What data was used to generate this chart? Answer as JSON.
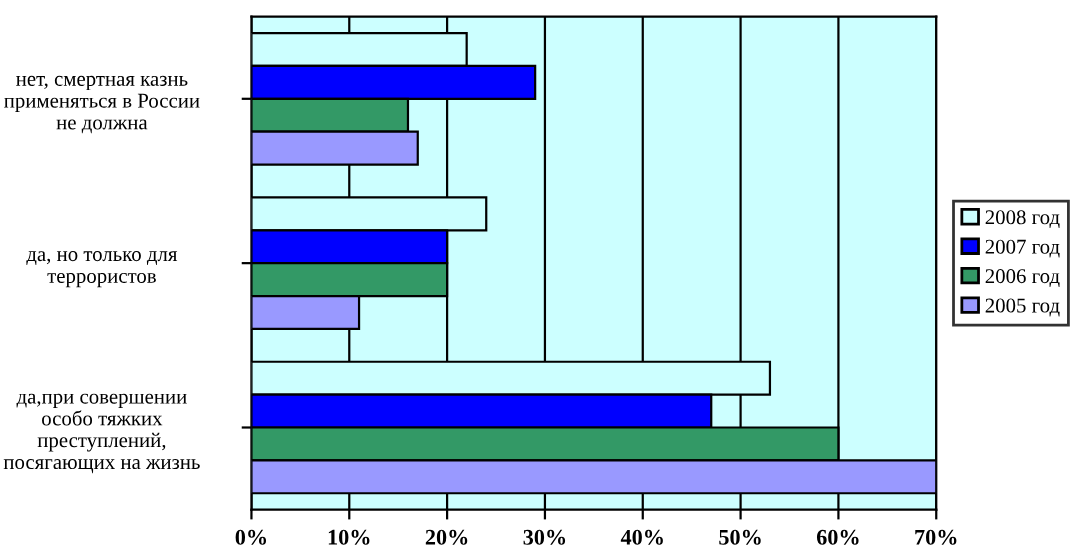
{
  "chart_data": {
    "type": "bar",
    "orientation": "horizontal",
    "categories": [
      "нет, смертная казнь применяться в России не должна",
      "да, но только для террористов",
      "да,при совершении особо тяжких преступлений, посягающих на жизнь"
    ],
    "series": [
      {
        "name": "2008 год",
        "color": "#ccffff",
        "values": [
          22,
          24,
          53
        ]
      },
      {
        "name": "2007 год",
        "color": "#0000ff",
        "values": [
          29,
          20,
          47
        ]
      },
      {
        "name": "2006 год",
        "color": "#339966",
        "values": [
          16,
          20,
          60
        ]
      },
      {
        "name": "2005 год",
        "color": "#9999ff",
        "values": [
          17,
          11,
          70
        ]
      }
    ],
    "xlim": [
      0,
      70
    ],
    "xticks": [
      {
        "value": 0,
        "label": "0%"
      },
      {
        "value": 10,
        "label": "10%"
      },
      {
        "value": 20,
        "label": "20%"
      },
      {
        "value": 30,
        "label": "30%"
      },
      {
        "value": 40,
        "label": "40%"
      },
      {
        "value": 50,
        "label": "50%"
      },
      {
        "value": 60,
        "label": "60%"
      },
      {
        "value": 70,
        "label": "70%"
      }
    ],
    "grid": "x",
    "legend": "right"
  }
}
